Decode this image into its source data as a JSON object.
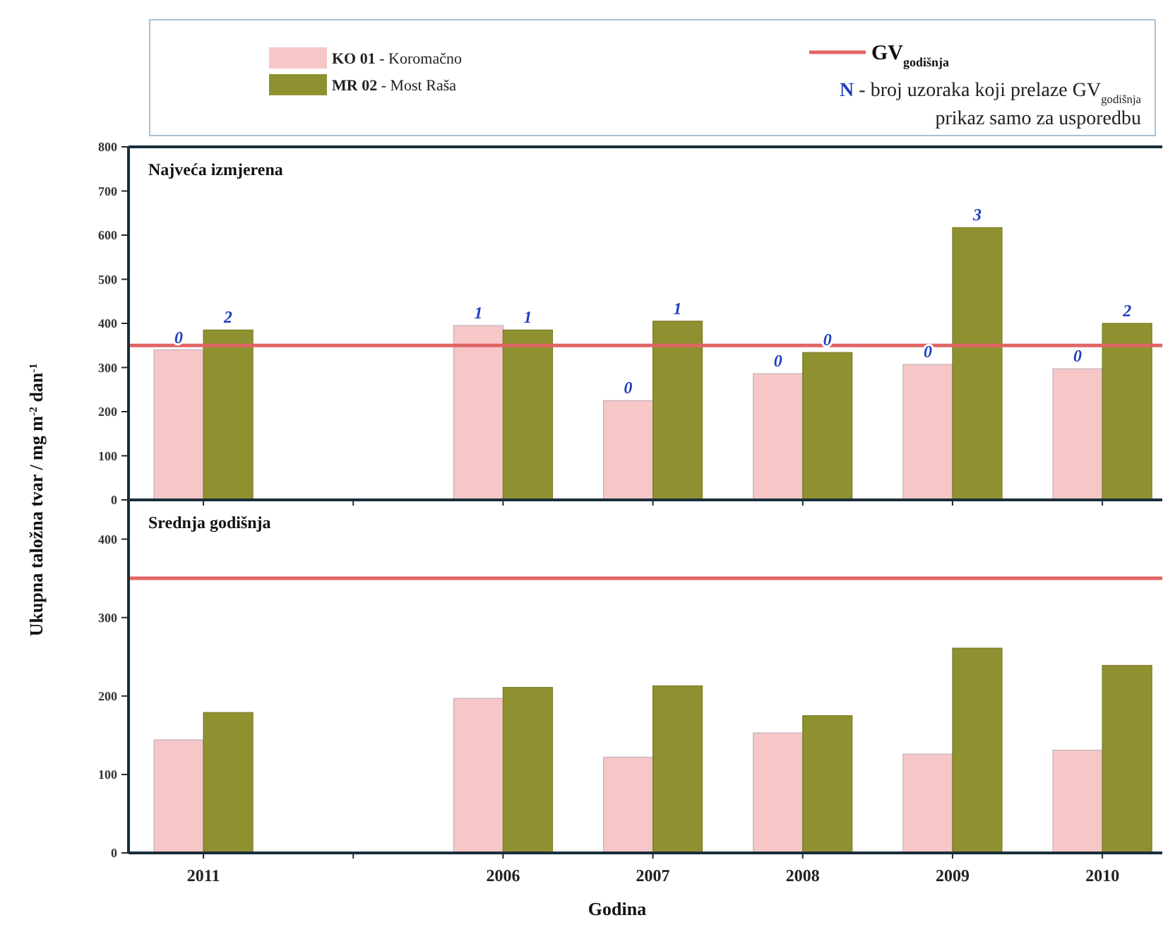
{
  "chart_data": [
    {
      "type": "bar",
      "title": "Najveća izmjerena",
      "ylabel": "Ukupna taložna tvar / mg m$^{-2}$ dan$^{-1}$",
      "categories": [
        "2011",
        null,
        "2006",
        "2007",
        "2008",
        "2009",
        "2010"
      ],
      "series": [
        {
          "name": "KO 01 - Koromačno",
          "color": "#f7c6c7",
          "values": [
            340,
            null,
            395,
            225,
            286,
            307,
            297
          ]
        },
        {
          "name": "MR 02 - Most Raša",
          "color": "#8f9130",
          "values": [
            385,
            null,
            385,
            405,
            334,
            617,
            400
          ]
        }
      ],
      "ylim": [
        0,
        800
      ],
      "yticks": [
        0,
        100,
        200,
        300,
        400,
        500,
        600,
        700,
        800
      ],
      "ref_lines": [
        {
          "axis": "y",
          "value": 350,
          "label": "GV$_{godišnja}$",
          "color": "#e06464"
        }
      ],
      "annotations": [
        "N - broj uzoraka koji prelaze GV$_{godišnja}$",
        "prikaz samo za usporedbu",
        {
          "text": "0",
          "x": "2011",
          "y": 340
        },
        {
          "text": "2",
          "x": "2011",
          "y": 385
        },
        {
          "text": "1",
          "x": "2006",
          "y": 395
        },
        {
          "text": "1",
          "x": "2006",
          "y": 385
        },
        {
          "text": "0",
          "x": "2007",
          "y": 225
        },
        {
          "text": "1",
          "x": "2007",
          "y": 405
        },
        {
          "text": "0",
          "x": "2008",
          "y": 286
        },
        {
          "text": "0",
          "x": "2008",
          "y": 334
        },
        {
          "text": "0",
          "x": "2009",
          "y": 307
        },
        {
          "text": "3",
          "x": "2009",
          "y": 617
        },
        {
          "text": "0",
          "x": "2010",
          "y": 297
        },
        {
          "text": "2",
          "x": "2010",
          "y": 400
        }
      ],
      "legend": "top",
      "tick_labels": "y",
      "grid": false
    },
    {
      "type": "bar",
      "title": "Srednja godišnja",
      "xlabel": "Godina",
      "categories": [
        "2011",
        null,
        "2006",
        "2007",
        "2008",
        "2009",
        "2010"
      ],
      "series": [
        {
          "color": "#f7c6c7",
          "values": [
            144,
            null,
            197,
            122,
            153,
            126,
            131
          ]
        },
        {
          "color": "#8f9130",
          "values": [
            179,
            null,
            211,
            213,
            175,
            261,
            239
          ]
        }
      ],
      "ylim": [
        0,
        450
      ],
      "yticks": [
        0,
        100,
        200,
        300,
        400
      ],
      "ref_lines": [
        {
          "axis": "y",
          "value": 350,
          "color": "#e06464"
        }
      ],
      "grid": false
    }
  ]
}
